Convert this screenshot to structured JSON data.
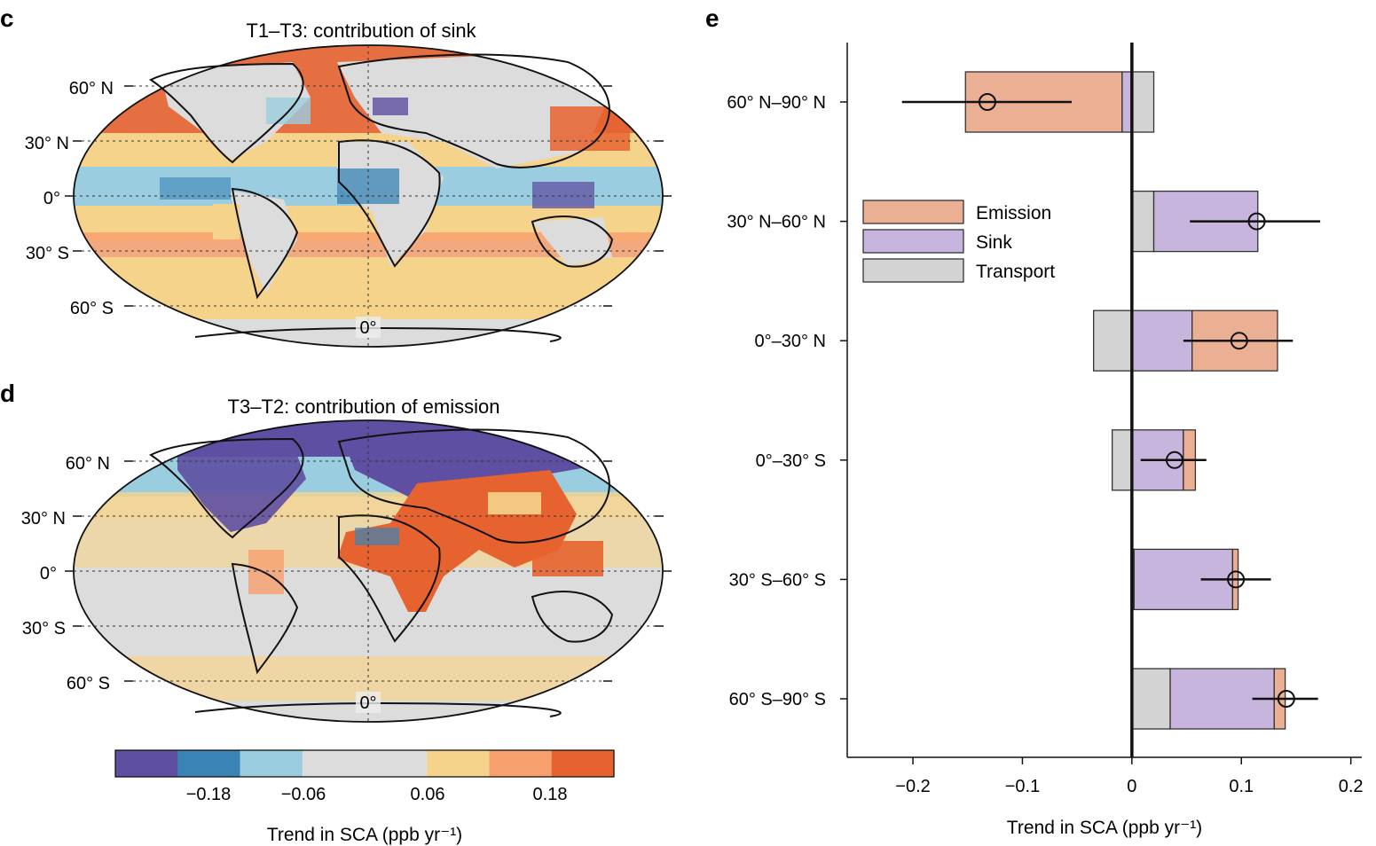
{
  "panels": {
    "c": {
      "letter": "c",
      "title": "T1–T3: contribution of sink",
      "lat_labels": [
        "60° N",
        "30° N",
        "0°",
        "30° S",
        "60° S"
      ],
      "meridian_label": "0°"
    },
    "d": {
      "letter": "d",
      "title": "T3–T2: contribution of emission",
      "lat_labels": [
        "60° N",
        "30° N",
        "0°",
        "30° S",
        "60° S"
      ],
      "meridian_label": "0°"
    },
    "e": {
      "letter": "e"
    }
  },
  "colorbar": {
    "colors": [
      "#5e4fa2",
      "#3a83b5",
      "#9bcde0",
      "#dcdcdc",
      "#dcdcdc",
      "#f6d38b",
      "#f7a06e",
      "#e6632f"
    ],
    "tick_labels": [
      "−0.18",
      "−0.06",
      "0.06",
      "0.18"
    ],
    "label": "Trend in SCA (ppb yr⁻¹)"
  },
  "chart_data": {
    "type": "bar",
    "orientation": "horizontal-stacked",
    "categories": [
      "60° N–90° N",
      "30° N–60° N",
      "0°–30° N",
      "0°–30° S",
      "30° S–60° S",
      "60° S–90° S"
    ],
    "series": [
      {
        "name": "Emission",
        "color": "#ebb094",
        "values": [
          -0.143,
          0.0,
          0.078,
          0.011,
          0.005,
          0.01
        ]
      },
      {
        "name": "Sink",
        "color": "#c7b5dd",
        "values": [
          -0.009,
          0.095,
          0.055,
          0.047,
          0.09,
          0.095
        ]
      },
      {
        "name": "Transport",
        "color": "#d3d3d3",
        "values": [
          0.02,
          0.02,
          -0.035,
          -0.018,
          0.002,
          0.035
        ]
      }
    ],
    "totals": [
      -0.132,
      0.114,
      0.098,
      0.039,
      0.095,
      0.141
    ],
    "error_low": [
      -0.21,
      0.053,
      0.047,
      0.008,
      0.063,
      0.11
    ],
    "error_high": [
      -0.055,
      0.172,
      0.147,
      0.068,
      0.127,
      0.17
    ],
    "xlabel": "Trend in SCA (ppb yr⁻¹)",
    "xlim": [
      -0.26,
      0.21
    ],
    "xticks": [
      -0.2,
      -0.1,
      0,
      0.1,
      0.2
    ],
    "xtick_labels": [
      "−0.2",
      "−0.1",
      "0",
      "0.1",
      "0.2"
    ],
    "legend_position": "upper-left",
    "grid": false
  }
}
